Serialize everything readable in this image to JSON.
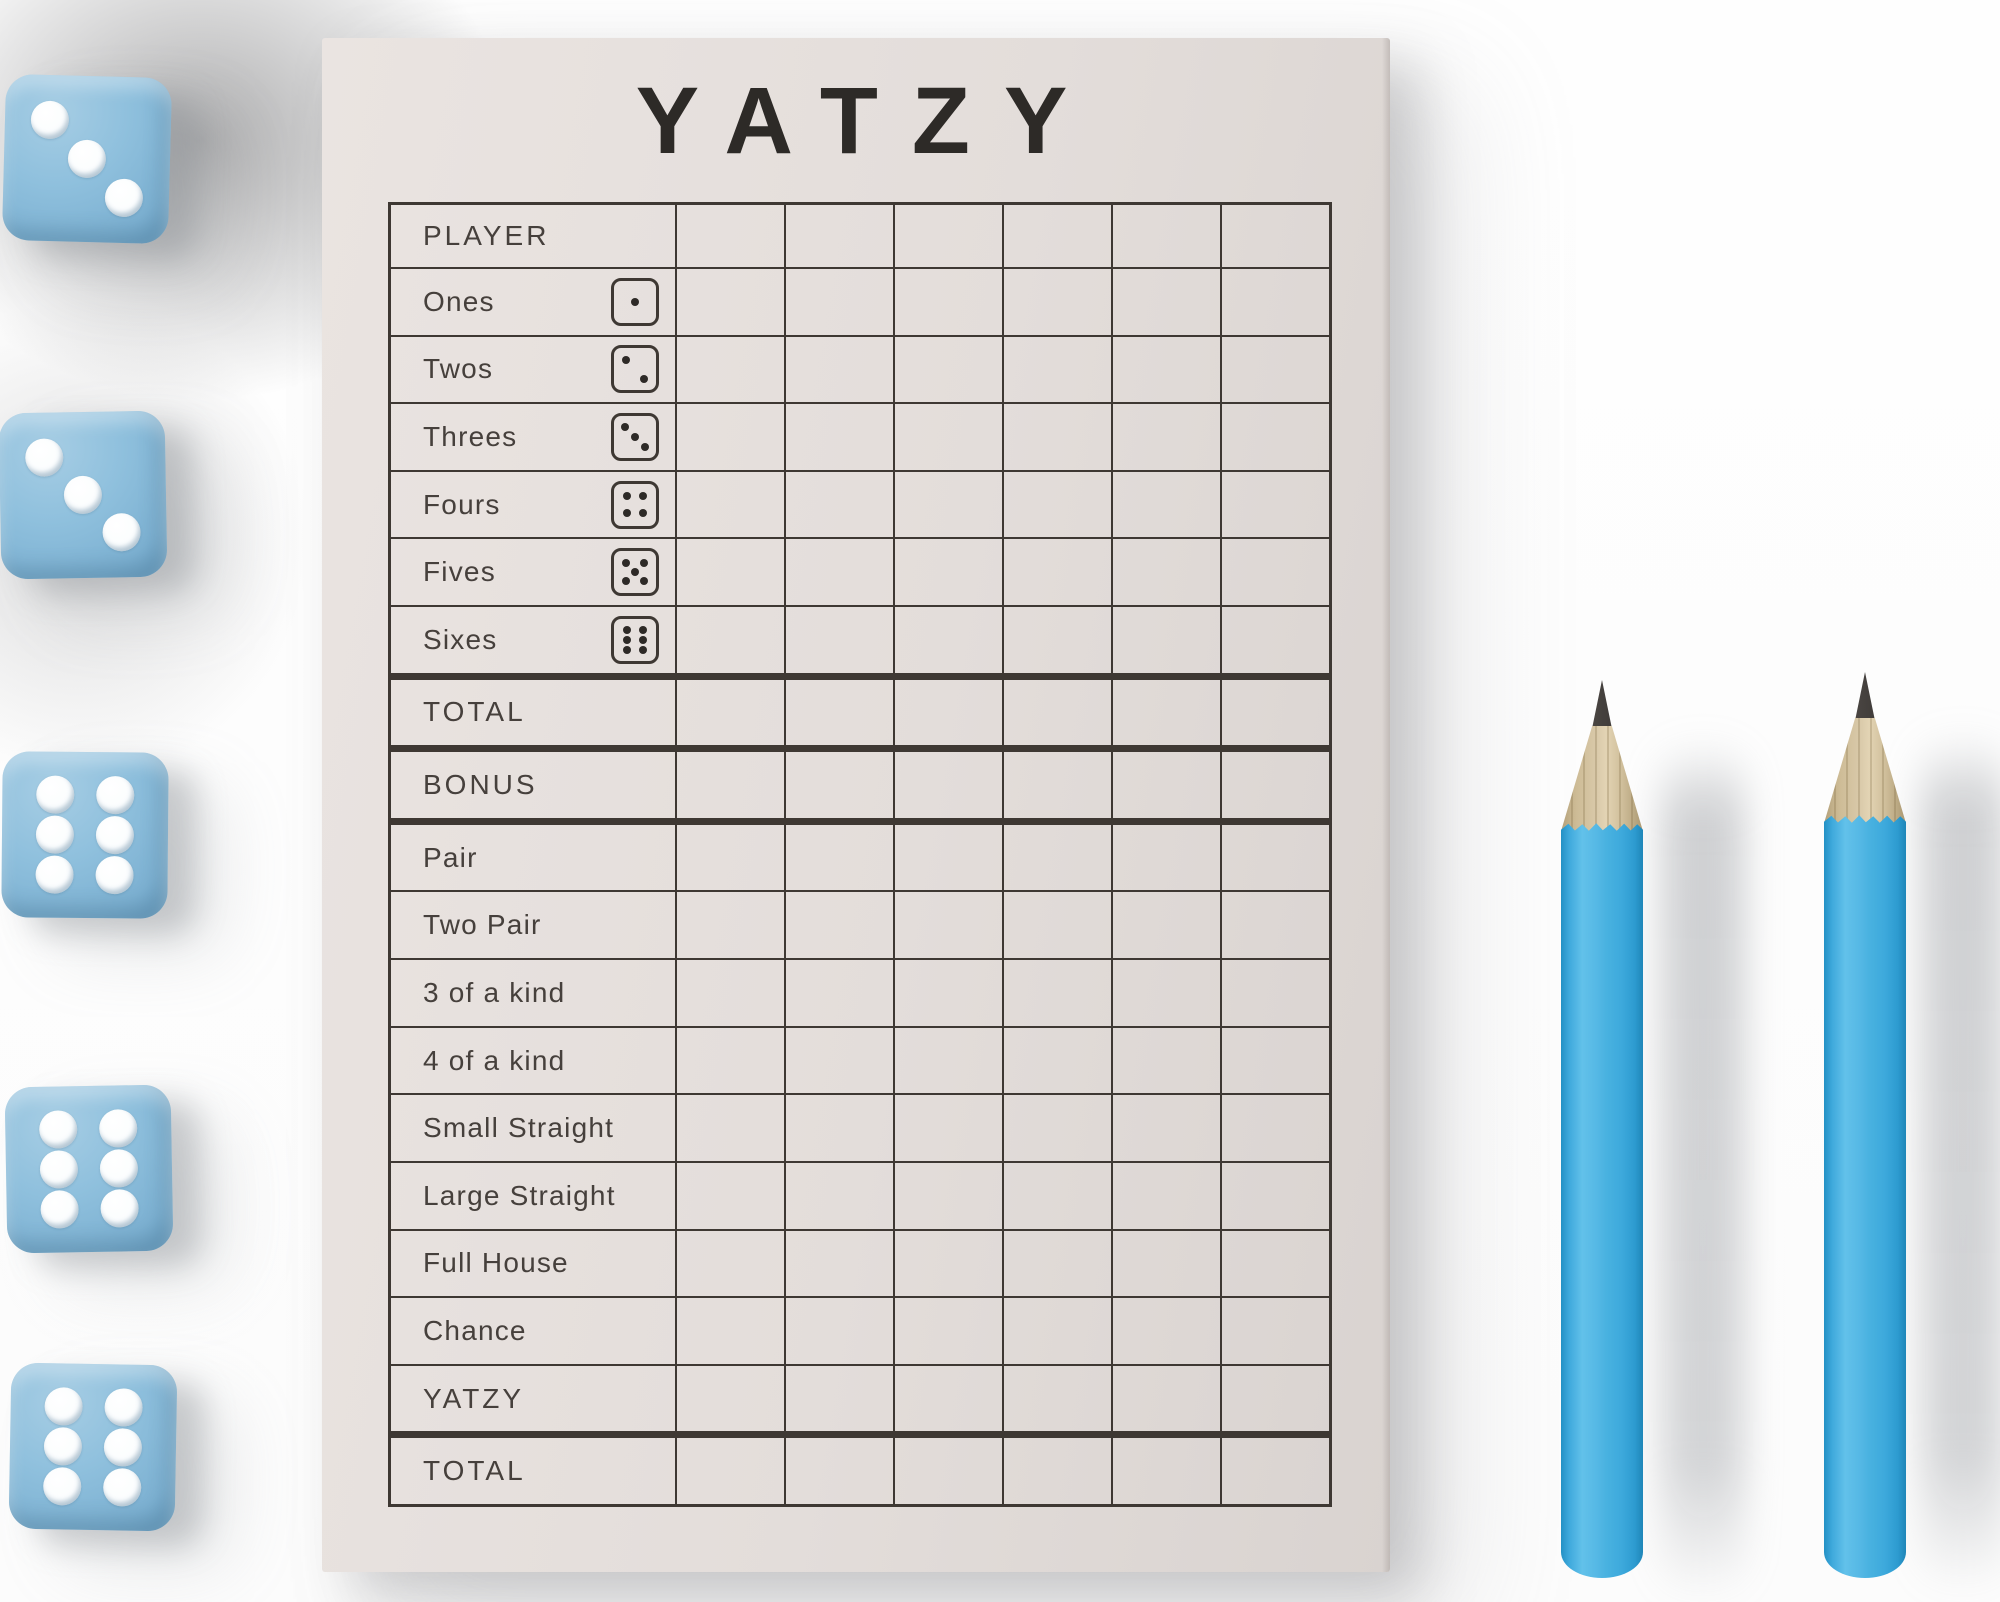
{
  "title": "YATZY",
  "scorecard": {
    "score_columns": 6,
    "rows": [
      {
        "label": "PLAYER",
        "style": "header"
      },
      {
        "label": "Ones",
        "die": 1
      },
      {
        "label": "Twos",
        "die": 2
      },
      {
        "label": "Threes",
        "die": 3
      },
      {
        "label": "Fours",
        "die": 4
      },
      {
        "label": "Fives",
        "die": 5
      },
      {
        "label": "Sixes",
        "die": 6
      },
      {
        "label": "TOTAL",
        "style": "total"
      },
      {
        "label": "BONUS",
        "style": "bonus"
      },
      {
        "label": "Pair",
        "style": "thick-top"
      },
      {
        "label": "Two Pair"
      },
      {
        "label": "3 of a kind"
      },
      {
        "label": "4 of a kind"
      },
      {
        "label": "Small Straight"
      },
      {
        "label": "Large Straight"
      },
      {
        "label": "Full House"
      },
      {
        "label": "Chance"
      },
      {
        "label": "YATZY"
      },
      {
        "label": "TOTAL",
        "style": "grand"
      }
    ]
  },
  "dice_set": {
    "dice": [
      {
        "name": "die-1",
        "value": 3
      },
      {
        "name": "die-2",
        "value": 3
      },
      {
        "name": "die-3",
        "value": 6
      },
      {
        "name": "die-4",
        "value": 6
      },
      {
        "name": "die-5",
        "value": 6
      }
    ]
  },
  "pencils": {
    "count": 2
  },
  "colors": {
    "paper": "#e3ddda",
    "ink": "#3e3833",
    "die_blue": "#8fc0dd",
    "pip_white": "#fbfdfe",
    "pencil_blue": "#49b2e0",
    "pencil_wood": "#d8c8a8",
    "pencil_graphite": "#45413e",
    "background": "#fcfcfc"
  }
}
